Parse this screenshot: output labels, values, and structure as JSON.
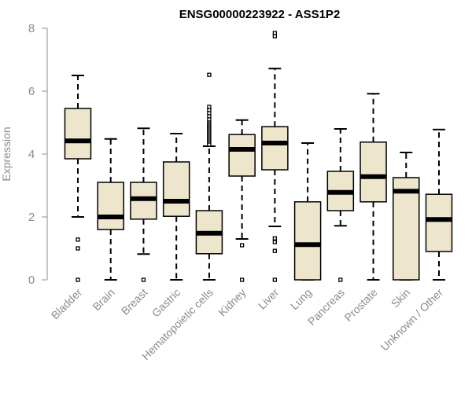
{
  "chart_data": {
    "type": "boxplot",
    "title": "ENSG00000223922 - ASS1P2",
    "xlabel": "",
    "ylabel": "Expression",
    "ylim": [
      0,
      8
    ],
    "yticks": [
      0,
      2,
      4,
      6,
      8
    ],
    "grid": false,
    "colors": {
      "box_fill": "#ede6cd",
      "box_stroke": "#000000",
      "median": "#000000",
      "axis": "#8c8c8c",
      "tick_label": "#8c8c8c",
      "title": "#000000"
    },
    "categories": [
      "Bladder",
      "Brain",
      "Breast",
      "Gastric",
      "Hematopoietic cells",
      "Kidney",
      "Liver",
      "Lung",
      "Pancreas",
      "Prostate",
      "Skin",
      "Unknown / Other"
    ],
    "boxes": [
      {
        "q1": 3.85,
        "median": 4.42,
        "q3": 5.45,
        "whisker_low": 2.0,
        "whisker_high": 6.5,
        "outliers": [
          1.28,
          1.0,
          0.0
        ]
      },
      {
        "q1": 1.6,
        "median": 2.0,
        "q3": 3.1,
        "whisker_low": 0.0,
        "whisker_high": 4.48,
        "outliers": []
      },
      {
        "q1": 1.93,
        "median": 2.58,
        "q3": 3.1,
        "whisker_low": 0.82,
        "whisker_high": 4.82,
        "outliers": [
          0.0
        ]
      },
      {
        "q1": 2.02,
        "median": 2.5,
        "q3": 3.75,
        "whisker_low": 0.0,
        "whisker_high": 4.65,
        "outliers": []
      },
      {
        "q1": 0.83,
        "median": 1.48,
        "q3": 2.2,
        "whisker_low": 0.0,
        "whisker_high": 4.25,
        "outliers": [
          6.52,
          5.5,
          5.4,
          5.3,
          5.2,
          5.1,
          5.0,
          4.95,
          4.9,
          4.85,
          4.8,
          4.75,
          4.7,
          4.65,
          4.6,
          4.55,
          4.5,
          4.45,
          4.4,
          4.35,
          4.3
        ]
      },
      {
        "q1": 3.3,
        "median": 4.15,
        "q3": 4.62,
        "whisker_low": 1.3,
        "whisker_high": 5.08,
        "outliers": [
          1.1,
          0.0
        ]
      },
      {
        "q1": 3.5,
        "median": 4.35,
        "q3": 4.87,
        "whisker_low": 1.7,
        "whisker_high": 6.72,
        "outliers": [
          7.85,
          7.75,
          1.32,
          1.2,
          0.92,
          0.0
        ]
      },
      {
        "q1": 0.0,
        "median": 1.12,
        "q3": 2.48,
        "whisker_low": 0.0,
        "whisker_high": 4.35,
        "outliers": []
      },
      {
        "q1": 2.2,
        "median": 2.78,
        "q3": 3.45,
        "whisker_low": 1.72,
        "whisker_high": 4.8,
        "outliers": [
          0.0
        ]
      },
      {
        "q1": 2.48,
        "median": 3.28,
        "q3": 4.38,
        "whisker_low": 0.0,
        "whisker_high": 5.92,
        "outliers": []
      },
      {
        "q1": 0.0,
        "median": 2.82,
        "q3": 3.25,
        "whisker_low": 0.0,
        "whisker_high": 4.05,
        "outliers": []
      },
      {
        "q1": 0.9,
        "median": 1.92,
        "q3": 2.72,
        "whisker_low": 0.0,
        "whisker_high": 4.78,
        "outliers": []
      }
    ]
  }
}
